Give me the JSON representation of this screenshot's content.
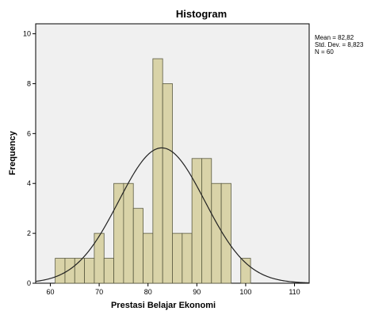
{
  "chart_data": {
    "type": "bar",
    "title": "Histogram",
    "xlabel": "Prestasi Belajar Ekonomi",
    "ylabel": "Frequency",
    "xlim": [
      57,
      113
    ],
    "ylim": [
      0,
      10.4
    ],
    "x_ticks": [
      60,
      70,
      80,
      90,
      100,
      110
    ],
    "y_ticks": [
      0,
      2,
      4,
      6,
      8,
      10
    ],
    "bin_width": 2,
    "bins": [
      {
        "start": 61,
        "count": 1
      },
      {
        "start": 63,
        "count": 1
      },
      {
        "start": 65,
        "count": 1
      },
      {
        "start": 67,
        "count": 1
      },
      {
        "start": 69,
        "count": 2
      },
      {
        "start": 71,
        "count": 1
      },
      {
        "start": 73,
        "count": 4
      },
      {
        "start": 75,
        "count": 4
      },
      {
        "start": 77,
        "count": 3
      },
      {
        "start": 79,
        "count": 2
      },
      {
        "start": 81,
        "count": 9
      },
      {
        "start": 83,
        "count": 8
      },
      {
        "start": 85,
        "count": 2
      },
      {
        "start": 87,
        "count": 2
      },
      {
        "start": 89,
        "count": 5
      },
      {
        "start": 91,
        "count": 5
      },
      {
        "start": 93,
        "count": 4
      },
      {
        "start": 95,
        "count": 4
      },
      {
        "start": 99,
        "count": 1
      }
    ],
    "normal_curve": {
      "mean": 82.82,
      "std_dev": 8.823,
      "n": 60
    },
    "stats_text": [
      "Mean = 82,82",
      "Std. Dev. = 8,823",
      "N = 60"
    ],
    "colors": {
      "bar_fill": "#d9d3a8",
      "bar_stroke": "#5a5a40",
      "plot_background": "#f0f0f0",
      "curve": "#222222"
    }
  }
}
